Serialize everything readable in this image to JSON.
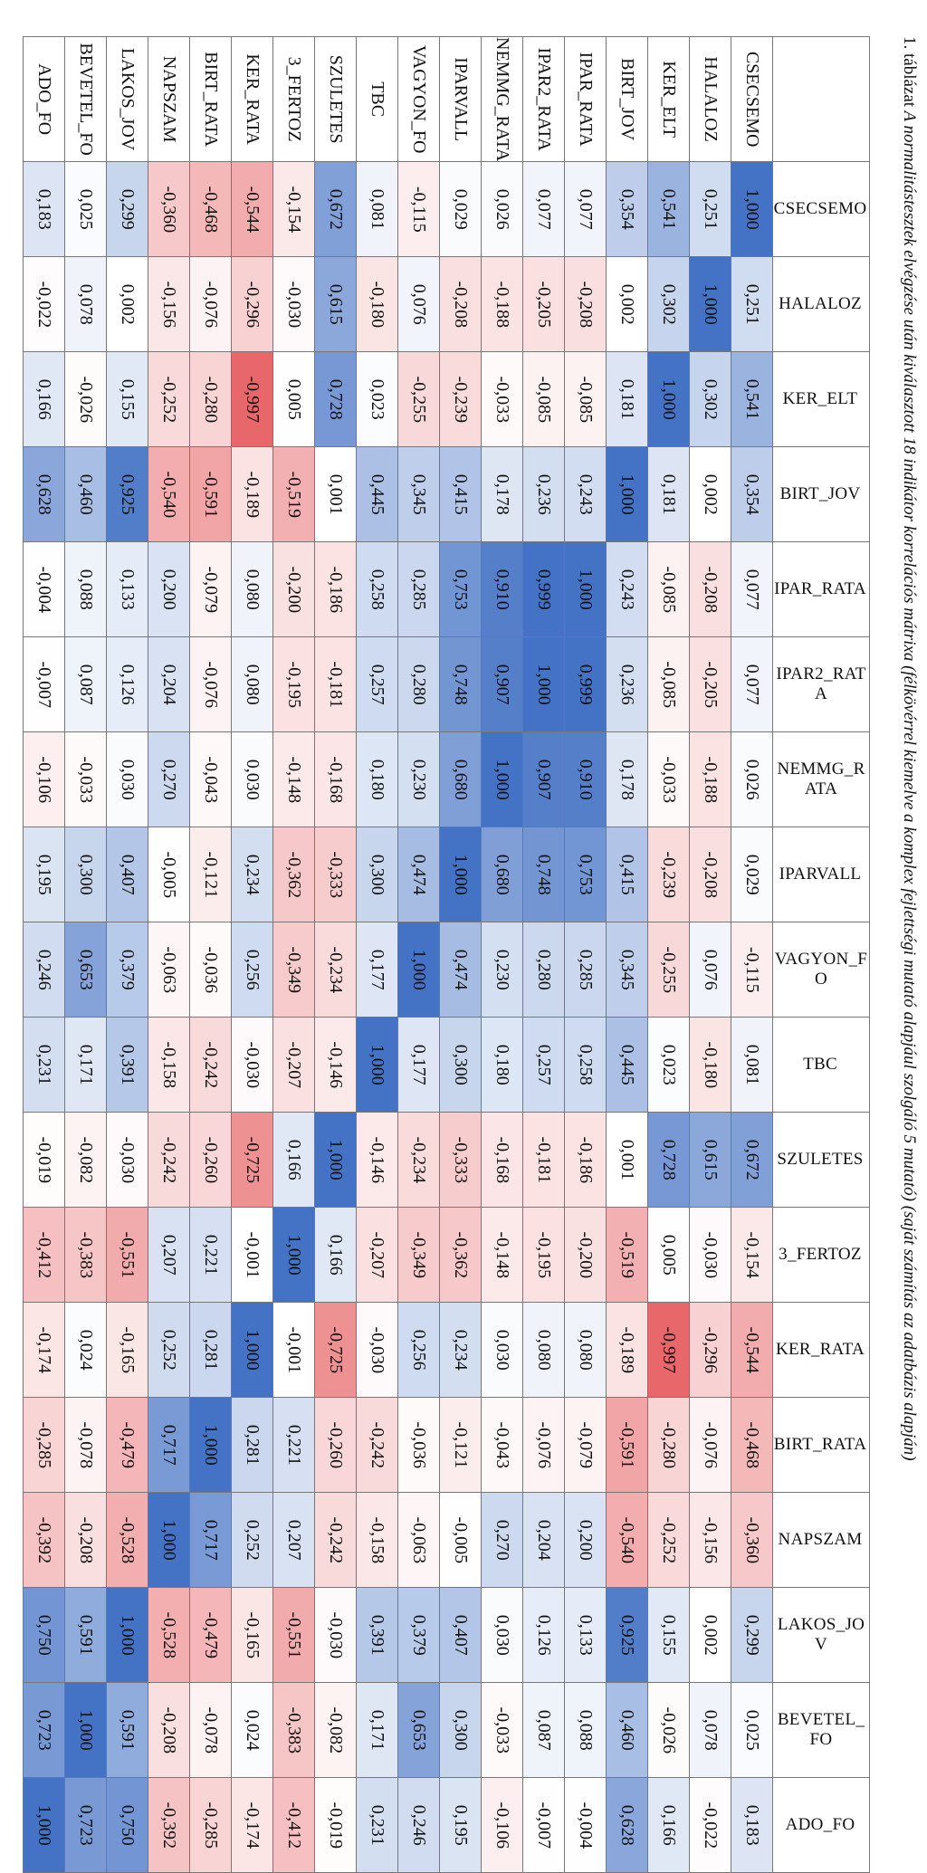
{
  "caption": {
    "label": "1. táblázat",
    "text": "A normalitástesztek elvégzése után kiválasztott 18 indikátor korrelációs mátrixa (félkövérrel kiemelve a komplex fejlettségi mutató alapjául szolgáló 5 mutató) (saját számítás az adatbázis alapján)"
  },
  "colors": {
    "positive": "#4472c4",
    "negative": "#e8676a",
    "neutral": "#ffffff",
    "border": "#777777"
  },
  "variables": [
    "CSECSEMO",
    "HALALOZ",
    "KER_ELT",
    "BIRT_JOV",
    "IPAR_RATA",
    "IPAR2_RATA",
    "NEMMG_RATA",
    "IPARVALL",
    "VAGYON_FO",
    "TBC",
    "SZULETES",
    "3_FERTOZ",
    "KER_RATA",
    "BIRT_RATA",
    "NAPSZAM",
    "LAKOS_JOV",
    "BEVETEL_FO",
    "ADO_FO"
  ],
  "matrix": [
    [
      "1,000",
      "0,251",
      "0,541",
      "0,354",
      "0,077",
      "0,077",
      "0,026",
      "0,029",
      "-0,115",
      "0,081",
      "0,672",
      "-0,154",
      "-0,544",
      "-0,468",
      "-0,360",
      "0,299",
      "0,025",
      "0,183"
    ],
    [
      "0,251",
      "1,000",
      "0,302",
      "0,002",
      "-0,208",
      "-0,205",
      "-0,188",
      "-0,208",
      "0,076",
      "-0,180",
      "0,615",
      "-0,030",
      "-0,296",
      "-0,076",
      "-0,156",
      "0,002",
      "0,078",
      "-0,022"
    ],
    [
      "0,541",
      "0,302",
      "1,000",
      "0,181",
      "-0,085",
      "-0,085",
      "-0,033",
      "-0,239",
      "-0,255",
      "0,023",
      "0,728",
      "0,005",
      "-0,997",
      "-0,280",
      "-0,252",
      "0,155",
      "-0,026",
      "0,166"
    ],
    [
      "0,354",
      "0,002",
      "0,181",
      "1,000",
      "0,243",
      "0,236",
      "0,178",
      "0,415",
      "0,345",
      "0,445",
      "0,001",
      "-0,519",
      "-0,189",
      "-0,591",
      "-0,540",
      "0,925",
      "0,460",
      "0,628"
    ],
    [
      "0,077",
      "-0,208",
      "-0,085",
      "0,243",
      "1,000",
      "0,999",
      "0,910",
      "0,753",
      "0,285",
      "0,258",
      "-0,186",
      "-0,200",
      "0,080",
      "-0,079",
      "0,200",
      "0,133",
      "0,088",
      "-0,004"
    ],
    [
      "0,077",
      "-0,205",
      "-0,085",
      "0,236",
      "0,999",
      "1,000",
      "0,907",
      "0,748",
      "0,280",
      "0,257",
      "-0,181",
      "-0,195",
      "0,080",
      "-0,076",
      "0,204",
      "0,126",
      "0,087",
      "-0,007"
    ],
    [
      "0,026",
      "-0,188",
      "-0,033",
      "0,178",
      "0,910",
      "0,907",
      "1,000",
      "0,680",
      "0,230",
      "0,180",
      "-0,168",
      "-0,148",
      "0,030",
      "-0,043",
      "0,270",
      "0,030",
      "-0,033",
      "-0,106"
    ],
    [
      "0,029",
      "-0,208",
      "-0,239",
      "0,415",
      "0,753",
      "0,748",
      "0,680",
      "1,000",
      "0,474",
      "0,300",
      "-0,333",
      "-0,362",
      "0,234",
      "-0,121",
      "-0,005",
      "0,407",
      "0,300",
      "0,195"
    ],
    [
      "-0,115",
      "0,076",
      "-0,255",
      "0,345",
      "0,285",
      "0,280",
      "0,230",
      "0,474",
      "1,000",
      "0,177",
      "-0,234",
      "-0,349",
      "0,256",
      "-0,036",
      "-0,063",
      "0,379",
      "0,653",
      "0,246"
    ],
    [
      "0,081",
      "-0,180",
      "0,023",
      "0,445",
      "0,258",
      "0,257",
      "0,180",
      "0,300",
      "0,177",
      "1,000",
      "-0,146",
      "-0,207",
      "-0,030",
      "-0,242",
      "-0,158",
      "0,391",
      "0,171",
      "0,231"
    ],
    [
      "0,672",
      "0,615",
      "0,728",
      "0,001",
      "-0,186",
      "-0,181",
      "-0,168",
      "-0,333",
      "-0,234",
      "-0,146",
      "1,000",
      "0,166",
      "-0,725",
      "-0,260",
      "-0,242",
      "-0,030",
      "-0,082",
      "-0,019"
    ],
    [
      "-0,154",
      "-0,030",
      "0,005",
      "-0,519",
      "-0,200",
      "-0,195",
      "-0,148",
      "-0,362",
      "-0,349",
      "-0,207",
      "0,166",
      "1,000",
      "-0,001",
      "0,221",
      "0,207",
      "-0,551",
      "-0,383",
      "-0,412"
    ],
    [
      "-0,544",
      "-0,296",
      "-0,997",
      "-0,189",
      "0,080",
      "0,080",
      "0,030",
      "0,234",
      "0,256",
      "-0,030",
      "-0,725",
      "-0,001",
      "1,000",
      "0,281",
      "0,252",
      "-0,165",
      "0,024",
      "-0,174"
    ],
    [
      "-0,468",
      "-0,076",
      "-0,280",
      "-0,591",
      "-0,079",
      "-0,076",
      "-0,043",
      "-0,121",
      "-0,036",
      "-0,242",
      "-0,260",
      "0,221",
      "0,281",
      "1,000",
      "0,717",
      "-0,479",
      "-0,078",
      "-0,285"
    ],
    [
      "-0,360",
      "-0,156",
      "-0,252",
      "-0,540",
      "0,200",
      "0,204",
      "0,270",
      "-0,005",
      "-0,063",
      "-0,158",
      "-0,242",
      "0,207",
      "0,252",
      "0,717",
      "1,000",
      "-0,528",
      "-0,208",
      "-0,392"
    ],
    [
      "0,299",
      "0,002",
      "0,155",
      "0,925",
      "0,133",
      "0,126",
      "0,030",
      "0,407",
      "0,379",
      "0,391",
      "-0,030",
      "-0,551",
      "-0,165",
      "-0,479",
      "-0,528",
      "1,000",
      "0,591",
      "0,750"
    ],
    [
      "0,025",
      "0,078",
      "-0,026",
      "0,460",
      "0,088",
      "0,087",
      "-0,033",
      "0,300",
      "0,653",
      "0,171",
      "-0,082",
      "-0,383",
      "0,024",
      "-0,078",
      "-0,208",
      "0,591",
      "1,000",
      "0,723"
    ],
    [
      "0,183",
      "-0,022",
      "0,166",
      "0,628",
      "-0,004",
      "-0,007",
      "-0,106",
      "0,195",
      "0,246",
      "0,231",
      "-0,019",
      "-0,412",
      "-0,174",
      "-0,285",
      "-0,392",
      "0,750",
      "0,723",
      "1,000"
    ]
  ]
}
